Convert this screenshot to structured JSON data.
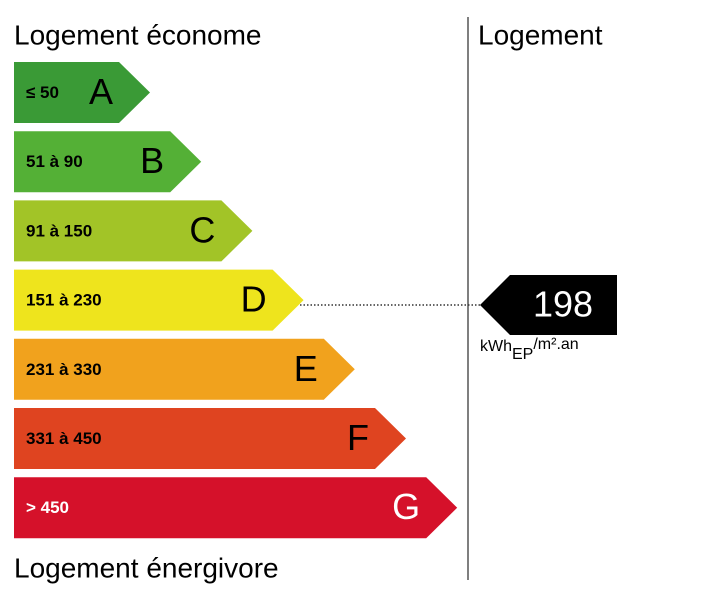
{
  "header": {
    "left_title": "Logement économe",
    "right_title": "Logement"
  },
  "footer_title": "Logement énergivore",
  "classes": [
    {
      "range": "≤ 50",
      "letter": "A",
      "color": "#3a9a36",
      "text_color": "#000000"
    },
    {
      "range": "51 à 90",
      "letter": "B",
      "color": "#54b036",
      "text_color": "#000000"
    },
    {
      "range": "91 à 150",
      "letter": "C",
      "color": "#a2c427",
      "text_color": "#000000"
    },
    {
      "range": "151 à 230",
      "letter": "D",
      "color": "#eee41d",
      "text_color": "#000000"
    },
    {
      "range": "231 à 330",
      "letter": "E",
      "color": "#f1a21d",
      "text_color": "#000000"
    },
    {
      "range": "331 à 450",
      "letter": "F",
      "color": "#df4420",
      "text_color": "#000000"
    },
    {
      "range": "> 450",
      "letter": "G",
      "color": "#d5112a",
      "text_color": "#ffffff"
    }
  ],
  "indicator": {
    "value": 198,
    "unit_main": "kWh",
    "unit_sub": "EP",
    "unit_sup": "/m².an"
  }
}
